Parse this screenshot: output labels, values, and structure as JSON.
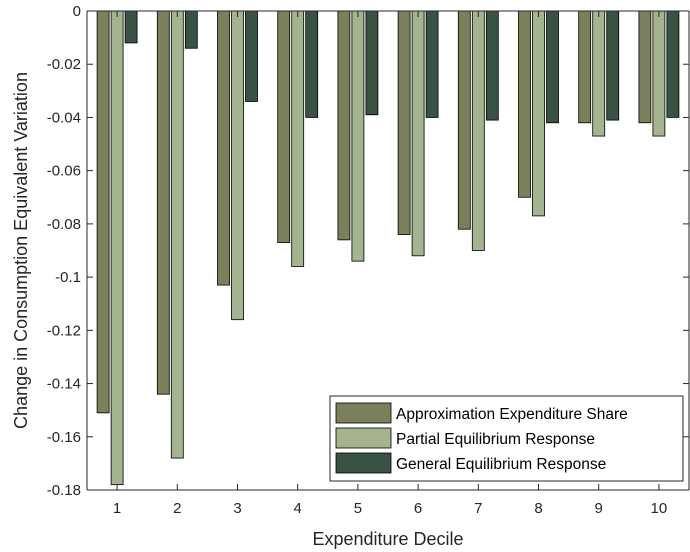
{
  "chart_data": {
    "type": "bar",
    "title": "",
    "xlabel": "Expenditure Decile",
    "ylabel": "Change in Consumption Equivalent Variation",
    "categories": [
      "1",
      "2",
      "3",
      "4",
      "5",
      "6",
      "7",
      "8",
      "9",
      "10"
    ],
    "ylim": [
      -0.18,
      0
    ],
    "yticks": [
      0,
      -0.02,
      -0.04,
      -0.06,
      -0.08,
      -0.1,
      -0.12,
      -0.14,
      -0.16,
      -0.18
    ],
    "ytick_labels": [
      "0",
      "-0.02",
      "-0.04",
      "-0.06",
      "-0.08",
      "-0.1",
      "-0.12",
      "-0.14",
      "-0.16",
      "-0.18"
    ],
    "grid": false,
    "legend_position": "bottom-right",
    "series": [
      {
        "name": "Approximation Expenditure Share",
        "color": "#7a805a",
        "values": [
          -0.151,
          -0.144,
          -0.103,
          -0.087,
          -0.086,
          -0.084,
          -0.082,
          -0.07,
          -0.042,
          -0.042
        ]
      },
      {
        "name": "Partial Equilibrium Response",
        "color": "#a4b48e",
        "values": [
          -0.178,
          -0.168,
          -0.116,
          -0.096,
          -0.094,
          -0.092,
          -0.09,
          -0.077,
          -0.047,
          -0.047
        ]
      },
      {
        "name": "General Equilibrium Response",
        "color": "#385244",
        "values": [
          -0.012,
          -0.014,
          -0.034,
          -0.04,
          -0.039,
          -0.04,
          -0.041,
          -0.042,
          -0.041,
          -0.04
        ]
      }
    ]
  }
}
